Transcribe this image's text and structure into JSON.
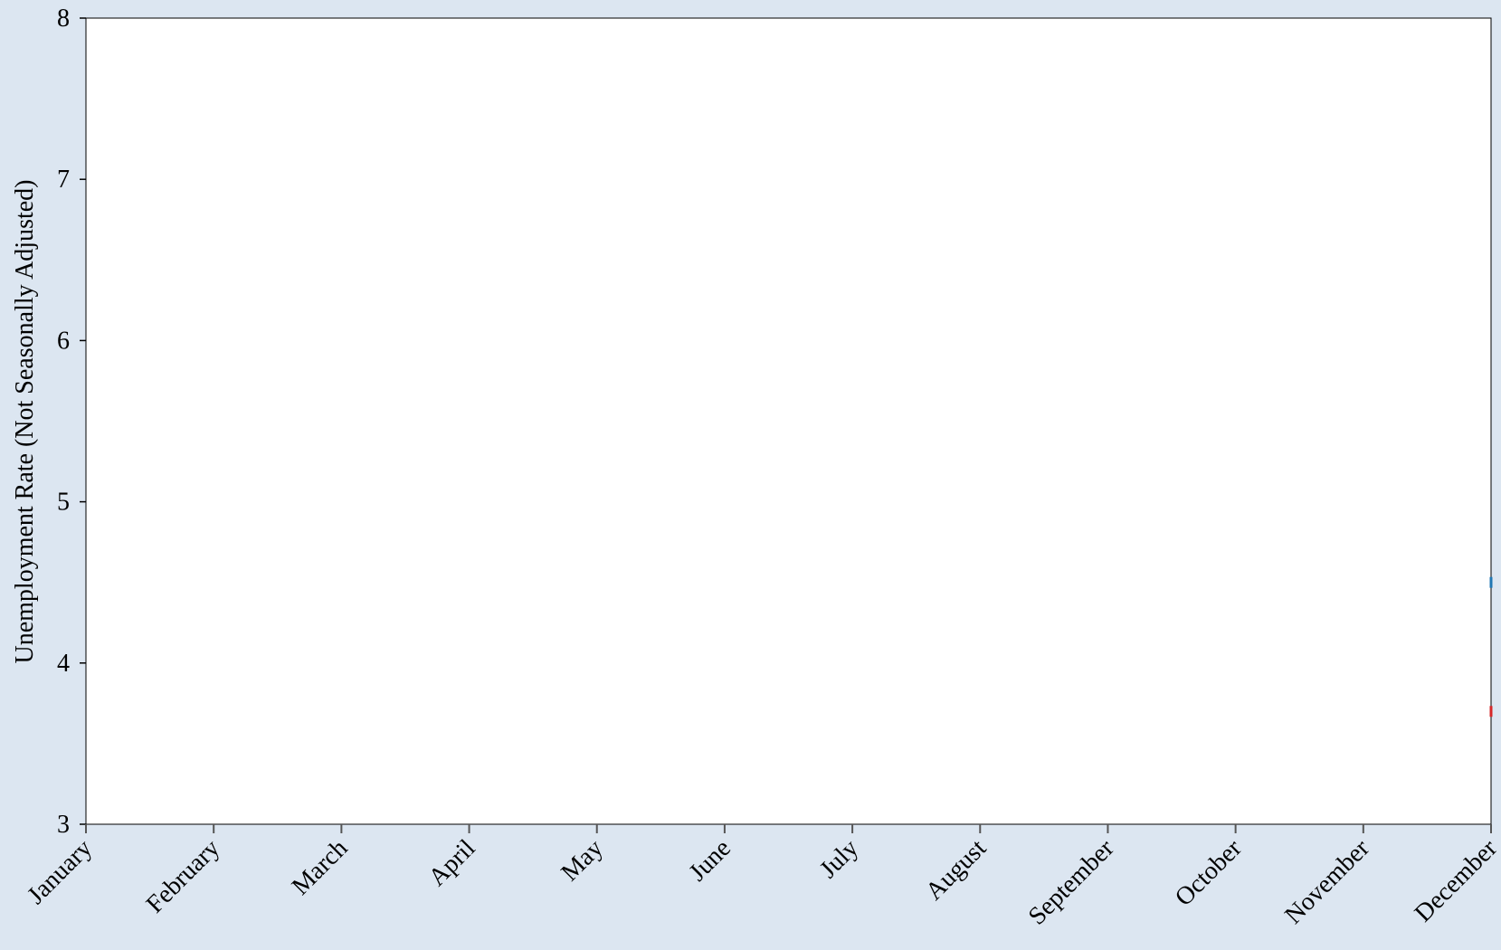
{
  "chart_data": {
    "type": "line",
    "title": "",
    "xlabel": "",
    "ylabel": "Unemployment Rate (Not Seasonally Adjusted)",
    "categories": [
      "January",
      "February",
      "March",
      "April",
      "May",
      "June",
      "July",
      "August",
      "September",
      "October",
      "November",
      "December"
    ],
    "ylim": [
      3,
      8
    ],
    "yticks": [
      3,
      4,
      5,
      6,
      7,
      8
    ],
    "grid": false,
    "series": [
      {
        "color": "#1f77b4",
        "values": [
          null,
          null,
          null,
          null,
          null,
          null,
          null,
          null,
          null,
          null,
          null,
          4.5
        ]
      },
      {
        "color": "#d62728",
        "values": [
          null,
          null,
          null,
          null,
          null,
          null,
          null,
          null,
          null,
          null,
          null,
          3.7
        ]
      }
    ]
  }
}
